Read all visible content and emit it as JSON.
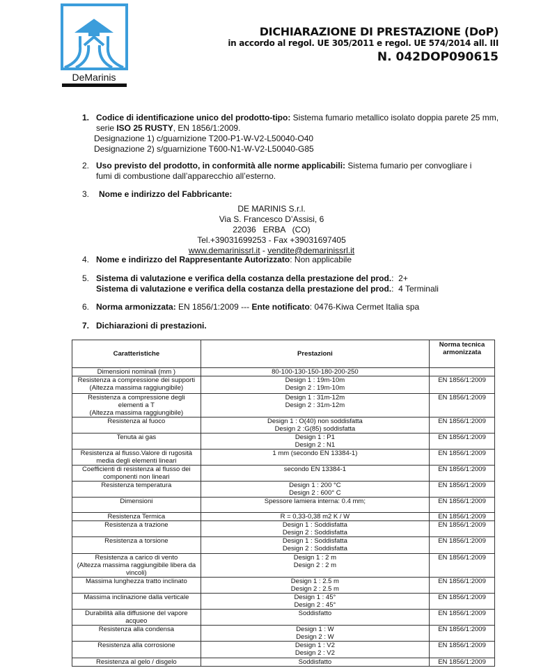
{
  "logo": {
    "text": "DeMarinis",
    "color": "#3b9ddb"
  },
  "header": {
    "title": "DICHIARAZIONE DI PRESTAZIONE (DoP)",
    "subtitle": "in accordo al regol. UE 305/2011 e regol. UE 574/2014 all. III",
    "number": "N. 042DOP090615"
  },
  "sections": {
    "s1": {
      "num": "1.",
      "label": "Codice di identificazione unico del prodotto-tipo:",
      "text": " Sistema fumario metallico isolato doppia parete 25 mm,",
      "line2a": "serie ",
      "line2b": "ISO 25 RUSTY",
      "line2c": ", EN 1856/1:2009.",
      "line3": "Designazione 1) c/guarnizione T200-P1-W-V2-L50040-O40",
      "line4": "Designazione 2) s/guarnizione T600-N1-W-V2-L50040-G85"
    },
    "s2": {
      "num": "2.",
      "label": "Uso previsto del prodotto, in conformità alle norme applicabili:",
      "text": " Sistema fumario per convogliare i",
      "line2": "fumi di combustione dall’apparecchio all’esterno."
    },
    "s3": {
      "num": "3.",
      "label": "Nome e indirizzo del Fabbricante:",
      "company": "DE MARINIS S.r.l.",
      "street": "Via S. Francesco D’Assisi, 6",
      "city": "22036   ERBA   (CO)",
      "phone": "Tel.+39031699253 - Fax +39031697405",
      "website": "www.demarinissrl.it",
      "sep": " - ",
      "email": "vendite@demarinissrl.it"
    },
    "s4": {
      "num": "4.",
      "label": "Nome e indirizzo del Rappresentante Autorizzato",
      "text": ": Non applicabile"
    },
    "s5": {
      "num": "5.",
      "label1": "Sistema di valutazione e verifica della costanza della prestazione del prod.",
      "text1": ":  2+",
      "label2": "Sistema di valutazione e verifica della costanza della prestazione del prod.",
      "text2": ":  4 Terminali"
    },
    "s6": {
      "num": "6.",
      "label1": "Norma armonizzata:",
      "text1": " EN 1856/1:2009 --- ",
      "label2": "Ente notificato",
      "text2": ": 0476-Kiwa Cermet Italia spa"
    },
    "s7": {
      "num": "7.",
      "label": "Dichiarazioni di prestazioni."
    }
  },
  "table": {
    "headers": [
      "Caratteristiche",
      "Prestazioni",
      "Norma tecnica armonizzata"
    ],
    "rows": [
      {
        "c": "Dimensioni nominali (mm )",
        "p": "80-100-130-150-180-200-250",
        "n": ""
      },
      {
        "c": "Resistenza a compressione dei supporti\n(Altezza massima raggiungibile)",
        "p": "Design 1 : 19m-10m\nDesign 2 : 19m-10m",
        "n": "EN 1856/1:2009"
      },
      {
        "c": "Resistenza a compressione degli\nelementi a T\n(Altezza massima raggiungibile)",
        "p": "Design 1 : 31m-12m\nDesign 2 : 31m-12m",
        "n": "EN 1856/1:2009"
      },
      {
        "c": "Resistenza al fuoco",
        "p": "Design 1 : O(40) non soddisfatta\nDesign 2 :G(85) soddisfatta",
        "n": "EN 1856/1:2009"
      },
      {
        "c": "Tenuta ai gas",
        "p": "Design 1 : P1\nDesign 2 : N1",
        "n": "EN 1856/1:2009"
      },
      {
        "c": "Resistenza al flusso.Valore di rugosità\nmedia degli elementi lineari",
        "p": "1 mm (secondo EN 13384-1)",
        "n": "EN 1856/1:2009"
      },
      {
        "c": "Coefficienti di resistenza al flusso dei\ncomponenti non lineari",
        "p": "secondo EN 13384-1",
        "n": "EN 1856/1:2009"
      },
      {
        "c": "Resistenza temperatura",
        "p": "Design 1 : 200 °C\nDesign 2 : 600° C",
        "n": "EN 1856/1:2009"
      },
      {
        "c": "Dimensioni",
        "p": "Spessore lamiera interna: 0.4 mm;",
        "n": "EN 1856/1:2009"
      },
      {
        "c": "Resistenza Termica",
        "p": "R = 0,33-0,38 m2 K / W",
        "n": "EN 1856/1:2009"
      },
      {
        "c": "Resistenza a trazione",
        "p": "Design 1 : Soddisfatta\nDesign 2 : Soddisfatta",
        "n": "EN 1856/1:2009"
      },
      {
        "c": "Resistenza a torsione",
        "p": "Design 1 : Soddisfatta\nDesign 2 : Soddisfatta",
        "n": "EN 1856/1:2009"
      },
      {
        "c": "Resistenza a carico di vento\n(Altezza massima raggiungibile libera da\nvincoli)",
        "p": "Design 1 : 2 m\nDesign 2 : 2 m",
        "n": "EN 1856/1:2009"
      },
      {
        "c": "Massima lunghezza tratto inclinato",
        "p": "Design 1 : 2.5 m\nDesign 2  : 2.5 m",
        "n": "EN 1856/1:2009"
      },
      {
        "c": "Massima inclinazione dalla verticale",
        "p": "Design 1 : 45°\nDesign 2 : 45°",
        "n": "EN 1856/1:2009"
      },
      {
        "c": "Durabilità alla diffusione del vapore\nacqueo",
        "p": "Soddisfatto",
        "n": "EN 1856/1:2009"
      },
      {
        "c": "Resistenza alla condensa",
        "p": "Design 1 : W\nDesign 2 : W",
        "n": "EN 1856/1:2009"
      },
      {
        "c": "Resistenza alla corrosione",
        "p": "Design 1 : V2\nDesign 2 : V2",
        "n": "EN 1856/1:2009"
      },
      {
        "c": "Resistenza al gelo / disgelo",
        "p": "Soddisfatto",
        "n": "EN 1856/1:2009"
      }
    ]
  }
}
